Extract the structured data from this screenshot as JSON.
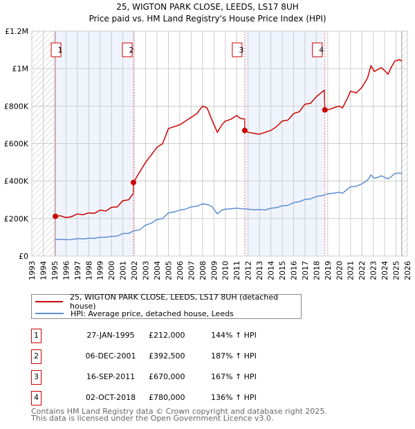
{
  "chart_data": {
    "type": "line",
    "title": "25, WIGTON PARK CLOSE, LEEDS, LS17 8UH",
    "subtitle": "Price paid vs. HM Land Registry's House Price Index (HPI)",
    "xlim": [
      1993,
      2026
    ],
    "ylim": [
      0,
      1200000
    ],
    "y_ticks": [
      {
        "v": 0,
        "label": "£0"
      },
      {
        "v": 200000,
        "label": "£200K"
      },
      {
        "v": 400000,
        "label": "£400K"
      },
      {
        "v": 600000,
        "label": "£600K"
      },
      {
        "v": 800000,
        "label": "£800K"
      },
      {
        "v": 1000000,
        "label": "£1M"
      },
      {
        "v": 1200000,
        "label": "£1.2M"
      }
    ],
    "x_ticks": [
      "1993",
      "1994",
      "1995",
      "1996",
      "1997",
      "1998",
      "1999",
      "2000",
      "2001",
      "2002",
      "2003",
      "2004",
      "2005",
      "2006",
      "2007",
      "2008",
      "2009",
      "2010",
      "2011",
      "2012",
      "2013",
      "2014",
      "2015",
      "2016",
      "2017",
      "2018",
      "2019",
      "2020",
      "2021",
      "2022",
      "2023",
      "2024",
      "2025",
      "2026"
    ],
    "grid": true,
    "shaded_ranges": [
      [
        1995.07,
        2001.93
      ],
      [
        2011.71,
        2018.75
      ]
    ],
    "hatched_ranges": [
      [
        1993,
        1995.07
      ],
      [
        2025.5,
        2026
      ]
    ],
    "series": [
      {
        "name": "25, WIGTON PARK CLOSE, LEEDS, LS17 8UH (detached house)",
        "color": "#cc0000",
        "x": [
          1995.07,
          1995.5,
          1996,
          1996.5,
          1997,
          1997.5,
          1998,
          1998.5,
          1999,
          1999.5,
          2000,
          2000.5,
          2001,
          2001.5,
          2001.92,
          2001.93,
          2002.3,
          2003,
          2003.5,
          2004,
          2004.5,
          2005,
          2005.5,
          2006,
          2006.5,
          2007,
          2007.5,
          2008,
          2008.4,
          2008.8,
          2009.3,
          2009.7,
          2010,
          2010.5,
          2011,
          2011.3,
          2011.7,
          2011.71,
          2012,
          2012.5,
          2013,
          2013.5,
          2014,
          2014.5,
          2015,
          2015.5,
          2016,
          2016.5,
          2017,
          2017.5,
          2018,
          2018.7,
          2018.75,
          2019,
          2019.5,
          2020,
          2020.3,
          2020.8,
          2021,
          2021.5,
          2022,
          2022.5,
          2022.8,
          2023.1,
          2023.4,
          2023.7,
          2024,
          2024.3,
          2024.6,
          2024.9,
          2025.3,
          2025.5
        ],
        "values": [
          212000,
          215000,
          205000,
          210000,
          225000,
          220000,
          230000,
          228000,
          245000,
          240000,
          260000,
          262000,
          295000,
          300000,
          335000,
          392500,
          430000,
          500000,
          540000,
          580000,
          600000,
          680000,
          690000,
          700000,
          720000,
          740000,
          760000,
          800000,
          790000,
          730000,
          660000,
          700000,
          720000,
          730000,
          750000,
          735000,
          730000,
          670000,
          660000,
          655000,
          650000,
          660000,
          670000,
          690000,
          720000,
          725000,
          760000,
          770000,
          810000,
          815000,
          850000,
          885000,
          780000,
          780000,
          790000,
          800000,
          790000,
          850000,
          880000,
          870000,
          900000,
          950000,
          1015000,
          985000,
          995000,
          1005000,
          990000,
          970000,
          1010000,
          1040000,
          1048000,
          1040000
        ]
      },
      {
        "name": "HPI: Average price, detached house, Leeds",
        "color": "#5b8ed6",
        "x": [
          1995.07,
          1995.5,
          1996,
          1996.5,
          1997,
          1997.5,
          1998,
          1998.5,
          1999,
          1999.5,
          2000,
          2000.5,
          2001,
          2001.5,
          2002,
          2002.5,
          2003,
          2003.5,
          2004,
          2004.5,
          2005,
          2005.5,
          2006,
          2006.5,
          2007,
          2007.5,
          2008,
          2008.4,
          2008.8,
          2009.3,
          2009.7,
          2010,
          2010.5,
          2011,
          2011.5,
          2012,
          2012.5,
          2013,
          2013.5,
          2014,
          2014.5,
          2015,
          2015.5,
          2016,
          2016.5,
          2017,
          2017.5,
          2018,
          2018.5,
          2019,
          2019.5,
          2020,
          2020.3,
          2020.8,
          2021,
          2021.5,
          2022,
          2022.5,
          2022.8,
          2023.1,
          2023.4,
          2023.7,
          2024,
          2024.3,
          2024.6,
          2024.9,
          2025.3,
          2025.5
        ],
        "values": [
          88000,
          89000,
          87000,
          88000,
          93000,
          91000,
          95000,
          94000,
          100000,
          100000,
          105000,
          106000,
          120000,
          121000,
          135000,
          140000,
          165000,
          175000,
          195000,
          200000,
          230000,
          235000,
          245000,
          250000,
          262000,
          265000,
          278000,
          275000,
          265000,
          225000,
          245000,
          250000,
          252000,
          255000,
          252000,
          250000,
          246000,
          248000,
          245000,
          255000,
          258000,
          268000,
          270000,
          285000,
          290000,
          302000,
          305000,
          318000,
          322000,
          332000,
          335000,
          340000,
          335000,
          360000,
          370000,
          372000,
          385000,
          405000,
          432000,
          415000,
          420000,
          428000,
          420000,
          412000,
          425000,
          440000,
          443000,
          440000
        ]
      }
    ],
    "sales": [
      {
        "id": "1",
        "x": 1995.07,
        "price": 212000
      },
      {
        "id": "2",
        "x": 2001.93,
        "price": 392500
      },
      {
        "id": "3",
        "x": 2011.71,
        "price": 670000
      },
      {
        "id": "4",
        "x": 2018.75,
        "price": 780000
      }
    ]
  },
  "legend": {
    "property": "25, WIGTON PARK CLOSE, LEEDS, LS17 8UH (detached house)",
    "hpi": "HPI: Average price, detached house, Leeds"
  },
  "transactions": [
    {
      "num": "1",
      "date": "27-JAN-1995",
      "price": "£212,000",
      "hpi": "144% ↑ HPI"
    },
    {
      "num": "2",
      "date": "06-DEC-2001",
      "price": "£392,500",
      "hpi": "187% ↑ HPI"
    },
    {
      "num": "3",
      "date": "16-SEP-2011",
      "price": "£670,000",
      "hpi": "167% ↑ HPI"
    },
    {
      "num": "4",
      "date": "02-OCT-2018",
      "price": "£780,000",
      "hpi": "136% ↑ HPI"
    }
  ],
  "footer": {
    "line1": "Contains HM Land Registry data © Crown copyright and database right 2025.",
    "line2": "This data is licensed under the Open Government Licence v3.0."
  }
}
